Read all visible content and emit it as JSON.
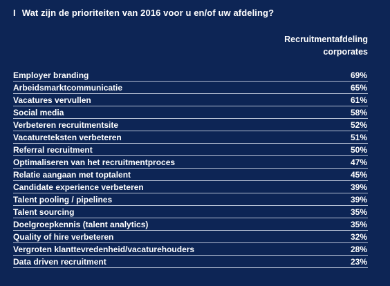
{
  "chart_data": {
    "type": "table",
    "title_marker": "I",
    "title": "Wat zijn de prioriteiten van 2016 voor u en/of uw afdeling?",
    "column_header": [
      "Recruitmentafdeling",
      "corporates"
    ],
    "rows": [
      {
        "label": "Employer branding",
        "value": "69%"
      },
      {
        "label": "Arbeidsmarktcommunicatie",
        "value": "65%"
      },
      {
        "label": "Vacatures vervullen",
        "value": "61%"
      },
      {
        "label": "Social media",
        "value": "58%"
      },
      {
        "label": "Verbeteren recruitmentsite",
        "value": "52%"
      },
      {
        "label": "Vacatureteksten verbeteren",
        "value": "51%"
      },
      {
        "label": "Referral recruitment",
        "value": "50%"
      },
      {
        "label": "Optimaliseren van het recruitmentproces",
        "value": "47%"
      },
      {
        "label": "Relatie aangaan met toptalent",
        "value": "45%"
      },
      {
        "label": "Candidate experience verbeteren",
        "value": "39%"
      },
      {
        "label": "Talent pooling / pipelines",
        "value": "39%"
      },
      {
        "label": "Talent sourcing",
        "value": "35%"
      },
      {
        "label": "Doelgroepkennis (talent analytics)",
        "value": "35%"
      },
      {
        "label": "Quality of hire verbeteren",
        "value": "32%"
      },
      {
        "label": "Vergroten klanttevredenheid/vacaturehouders",
        "value": "28%"
      },
      {
        "label": "Data driven recruitment",
        "value": "23%"
      }
    ]
  },
  "colors": {
    "background": "#0d2555",
    "text": "#ffffff",
    "divider": "#b8c2d6"
  }
}
